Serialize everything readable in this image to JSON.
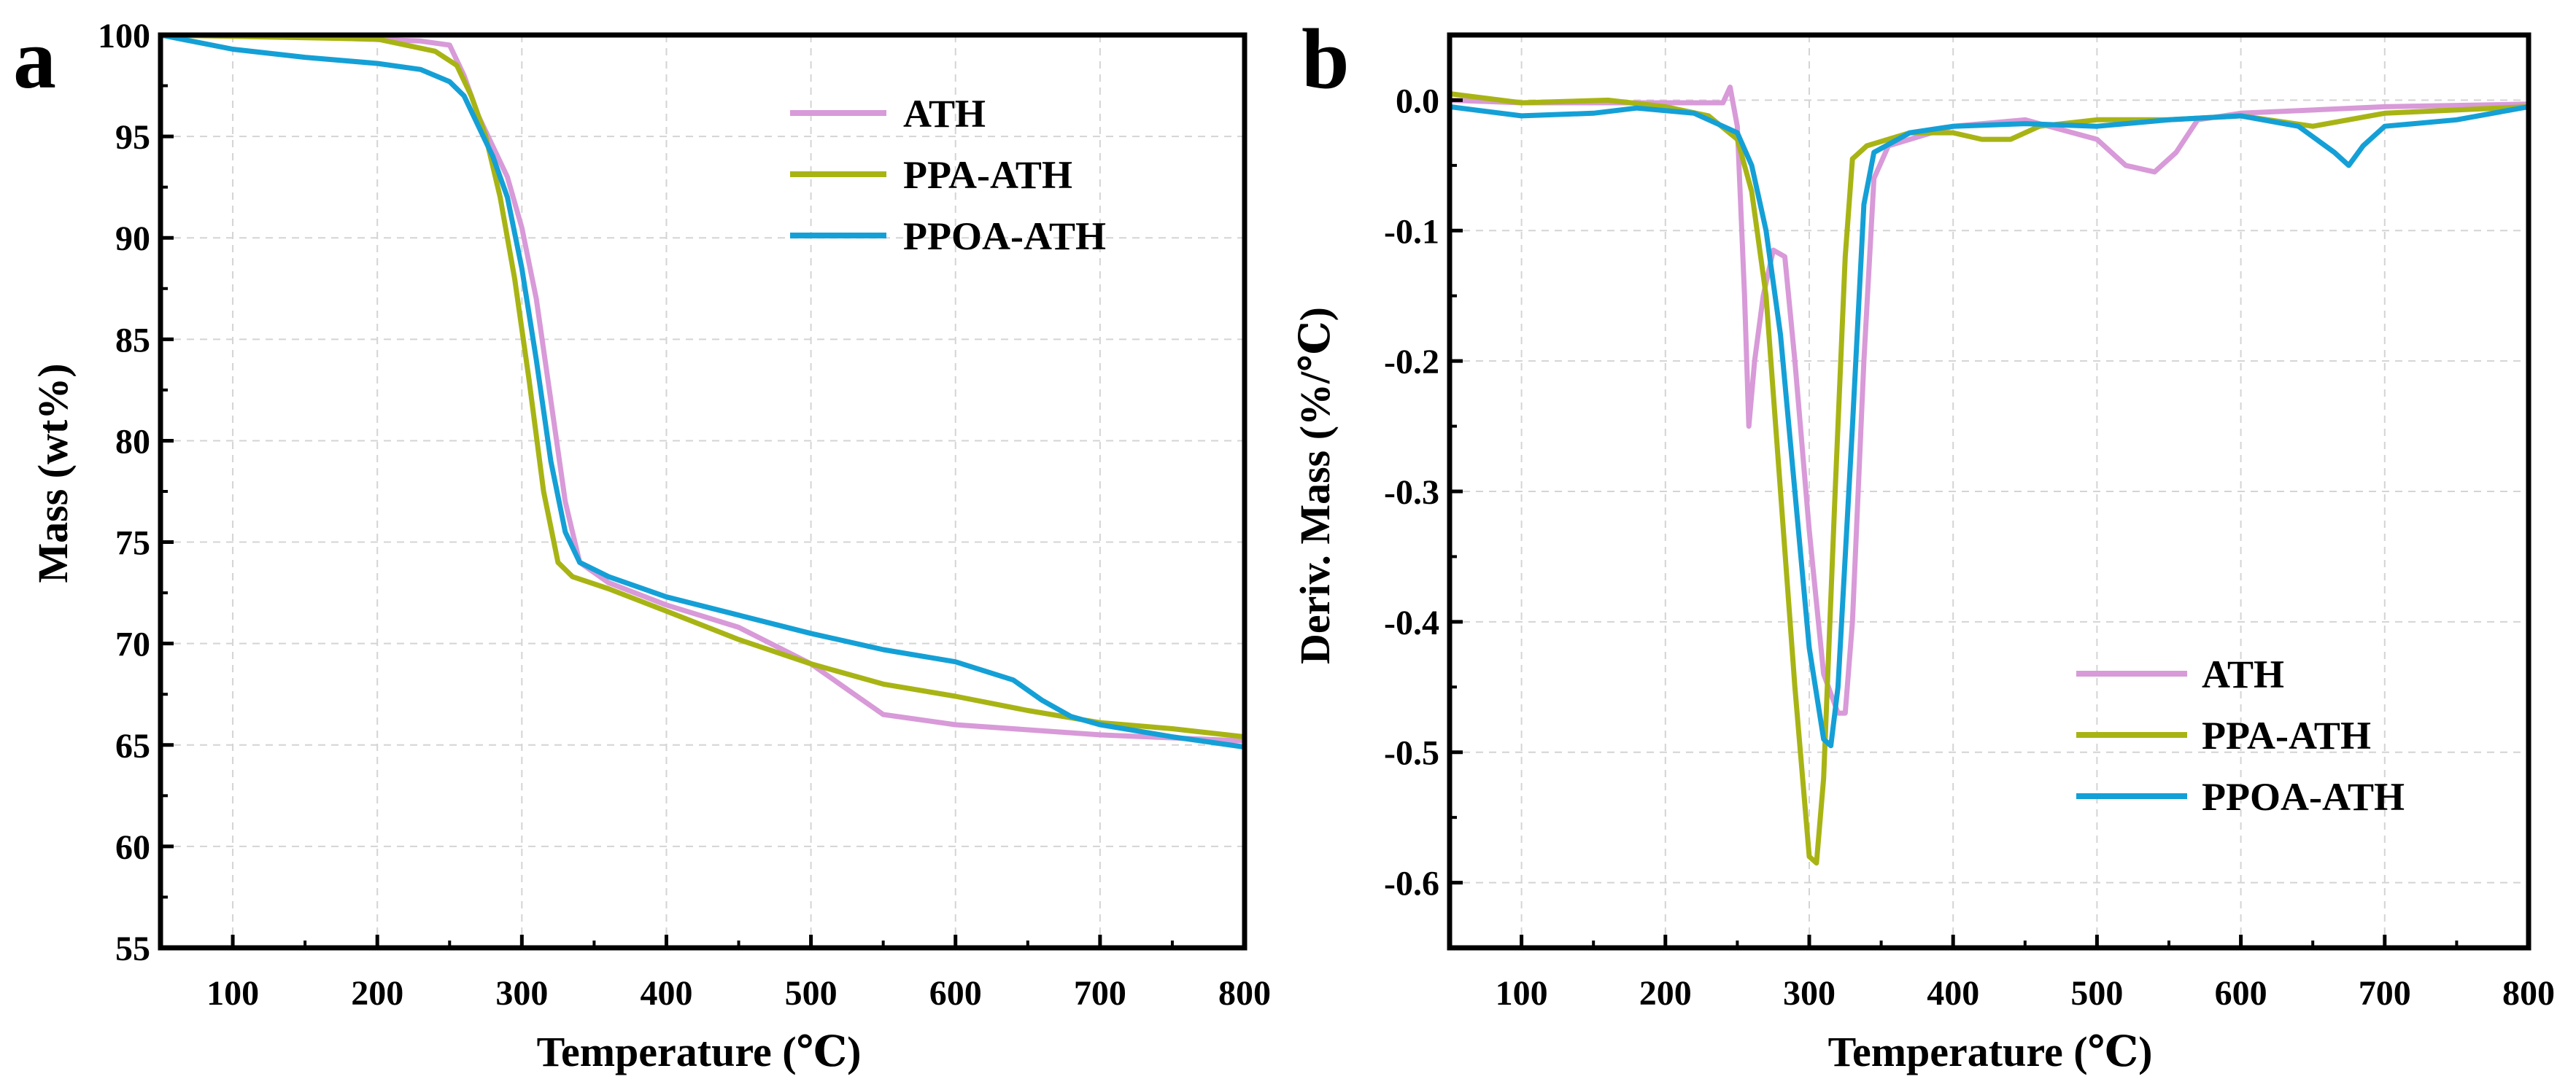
{
  "colors": {
    "ATH": "#d89ad8",
    "PPA-ATH": "#a8b414",
    "PPOA-ATH": "#14a0d6"
  },
  "chart_data": [
    {
      "type": "line",
      "panel": "a",
      "xlabel": "Temperature (℃)",
      "ylabel": "Mass (wt%)",
      "xlim": [
        50,
        800
      ],
      "ylim": [
        55,
        100
      ],
      "xticks": [
        100,
        200,
        300,
        400,
        500,
        600,
        700,
        800
      ],
      "yticks": [
        55,
        60,
        65,
        70,
        75,
        80,
        85,
        90,
        95,
        100
      ],
      "grid": true,
      "legend_position": "top-right",
      "series": [
        {
          "name": "ATH",
          "color": "#d89ad8",
          "points": [
            [
              50,
              100
            ],
            [
              150,
              99.9
            ],
            [
              230,
              99.7
            ],
            [
              250,
              99.5
            ],
            [
              260,
              98
            ],
            [
              270,
              96
            ],
            [
              280,
              94.5
            ],
            [
              290,
              93
            ],
            [
              300,
              90.5
            ],
            [
              310,
              87
            ],
            [
              320,
              82
            ],
            [
              330,
              77
            ],
            [
              340,
              74
            ],
            [
              360,
              73
            ],
            [
              400,
              71.9
            ],
            [
              450,
              70.8
            ],
            [
              500,
              69
            ],
            [
              530,
              67.5
            ],
            [
              550,
              66.5
            ],
            [
              600,
              66
            ],
            [
              700,
              65.5
            ],
            [
              800,
              65.2
            ]
          ]
        },
        {
          "name": "PPA-ATH",
          "color": "#a8b414",
          "points": [
            [
              50,
              100
            ],
            [
              200,
              99.8
            ],
            [
              240,
              99.2
            ],
            [
              255,
              98.5
            ],
            [
              265,
              97
            ],
            [
              275,
              95
            ],
            [
              285,
              92
            ],
            [
              295,
              88
            ],
            [
              305,
              83
            ],
            [
              315,
              77.5
            ],
            [
              325,
              74
            ],
            [
              335,
              73.3
            ],
            [
              360,
              72.7
            ],
            [
              400,
              71.6
            ],
            [
              450,
              70.2
            ],
            [
              500,
              69
            ],
            [
              550,
              68
            ],
            [
              600,
              67.4
            ],
            [
              650,
              66.7
            ],
            [
              700,
              66.1
            ],
            [
              750,
              65.8
            ],
            [
              800,
              65.4
            ]
          ]
        },
        {
          "name": "PPOA-ATH",
          "color": "#14a0d6",
          "points": [
            [
              50,
              100
            ],
            [
              100,
              99.3
            ],
            [
              150,
              98.9
            ],
            [
              200,
              98.6
            ],
            [
              230,
              98.3
            ],
            [
              250,
              97.7
            ],
            [
              260,
              97
            ],
            [
              270,
              95.5
            ],
            [
              280,
              94
            ],
            [
              290,
              92
            ],
            [
              300,
              88.5
            ],
            [
              310,
              84
            ],
            [
              320,
              79
            ],
            [
              330,
              75.5
            ],
            [
              340,
              74
            ],
            [
              360,
              73.3
            ],
            [
              400,
              72.3
            ],
            [
              450,
              71.4
            ],
            [
              500,
              70.5
            ],
            [
              550,
              69.7
            ],
            [
              600,
              69.1
            ],
            [
              640,
              68.2
            ],
            [
              660,
              67.2
            ],
            [
              680,
              66.4
            ],
            [
              700,
              66
            ],
            [
              750,
              65.4
            ],
            [
              800,
              64.9
            ]
          ]
        }
      ]
    },
    {
      "type": "line",
      "panel": "b",
      "xlabel": "Temperature (℃)",
      "ylabel": "Deriv. Mass (%/℃)",
      "xlim": [
        50,
        800
      ],
      "ylim": [
        -0.65,
        0.05
      ],
      "xticks": [
        100,
        200,
        300,
        400,
        500,
        600,
        700,
        800
      ],
      "yticks": [
        0.0,
        -0.1,
        -0.2,
        -0.3,
        -0.4,
        -0.5,
        -0.6
      ],
      "ytick_labels": [
        "0.0",
        "-0.1",
        "-0.2",
        "-0.3",
        "-0.4",
        "-0.5",
        "-0.6"
      ],
      "grid": true,
      "legend_position": "bottom-right",
      "series": [
        {
          "name": "ATH",
          "color": "#d89ad8",
          "points": [
            [
              50,
              0
            ],
            [
              100,
              -0.002
            ],
            [
              200,
              -0.002
            ],
            [
              240,
              -0.002
            ],
            [
              245,
              0.01
            ],
            [
              250,
              -0.02
            ],
            [
              255,
              -0.15
            ],
            [
              258,
              -0.25
            ],
            [
              262,
              -0.2
            ],
            [
              268,
              -0.15
            ],
            [
              275,
              -0.115
            ],
            [
              283,
              -0.12
            ],
            [
              290,
              -0.2
            ],
            [
              300,
              -0.33
            ],
            [
              310,
              -0.44
            ],
            [
              320,
              -0.47
            ],
            [
              325,
              -0.47
            ],
            [
              330,
              -0.4
            ],
            [
              338,
              -0.2
            ],
            [
              345,
              -0.06
            ],
            [
              355,
              -0.035
            ],
            [
              400,
              -0.02
            ],
            [
              450,
              -0.015
            ],
            [
              500,
              -0.03
            ],
            [
              520,
              -0.05
            ],
            [
              540,
              -0.055
            ],
            [
              555,
              -0.04
            ],
            [
              570,
              -0.015
            ],
            [
              600,
              -0.01
            ],
            [
              700,
              -0.005
            ],
            [
              800,
              -0.003
            ]
          ]
        },
        {
          "name": "PPA-ATH",
          "color": "#a8b414",
          "points": [
            [
              50,
              0.005
            ],
            [
              100,
              -0.002
            ],
            [
              160,
              0
            ],
            [
              200,
              -0.005
            ],
            [
              230,
              -0.012
            ],
            [
              250,
              -0.03
            ],
            [
              260,
              -0.07
            ],
            [
              270,
              -0.15
            ],
            [
              280,
              -0.3
            ],
            [
              290,
              -0.45
            ],
            [
              300,
              -0.58
            ],
            [
              305,
              -0.585
            ],
            [
              310,
              -0.52
            ],
            [
              318,
              -0.3
            ],
            [
              325,
              -0.12
            ],
            [
              330,
              -0.045
            ],
            [
              340,
              -0.035
            ],
            [
              370,
              -0.025
            ],
            [
              400,
              -0.025
            ],
            [
              420,
              -0.03
            ],
            [
              440,
              -0.03
            ],
            [
              460,
              -0.02
            ],
            [
              500,
              -0.015
            ],
            [
              550,
              -0.015
            ],
            [
              600,
              -0.012
            ],
            [
              650,
              -0.02
            ],
            [
              700,
              -0.01
            ],
            [
              800,
              -0.005
            ]
          ]
        },
        {
          "name": "PPOA-ATH",
          "color": "#14a0d6",
          "points": [
            [
              50,
              -0.005
            ],
            [
              100,
              -0.012
            ],
            [
              150,
              -0.01
            ],
            [
              180,
              -0.006
            ],
            [
              220,
              -0.01
            ],
            [
              250,
              -0.025
            ],
            [
              260,
              -0.05
            ],
            [
              270,
              -0.1
            ],
            [
              280,
              -0.18
            ],
            [
              290,
              -0.3
            ],
            [
              300,
              -0.42
            ],
            [
              310,
              -0.49
            ],
            [
              315,
              -0.495
            ],
            [
              320,
              -0.45
            ],
            [
              330,
              -0.25
            ],
            [
              338,
              -0.08
            ],
            [
              345,
              -0.04
            ],
            [
              370,
              -0.025
            ],
            [
              400,
              -0.02
            ],
            [
              450,
              -0.018
            ],
            [
              500,
              -0.02
            ],
            [
              550,
              -0.015
            ],
            [
              600,
              -0.012
            ],
            [
              640,
              -0.02
            ],
            [
              665,
              -0.04
            ],
            [
              675,
              -0.05
            ],
            [
              685,
              -0.035
            ],
            [
              700,
              -0.02
            ],
            [
              750,
              -0.015
            ],
            [
              800,
              -0.005
            ]
          ]
        }
      ]
    }
  ],
  "panels": [
    {
      "letter": "a",
      "xlabel": "Temperature (℃)",
      "ylabel": "Mass (wt%)"
    },
    {
      "letter": "b",
      "xlabel": "Temperature (℃)",
      "ylabel": "Deriv. Mass (%/℃)"
    }
  ]
}
